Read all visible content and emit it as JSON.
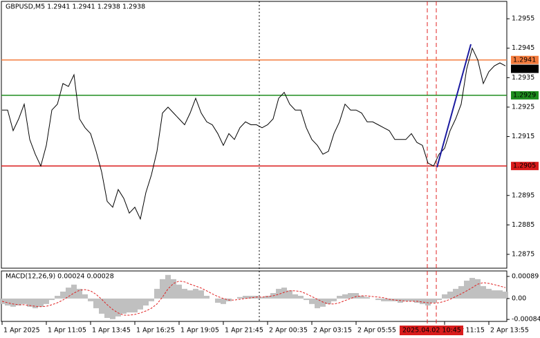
{
  "chart_data": {
    "type": "line",
    "title": "GBPUSD,M5  1.2941 1.2941 1.2938 1.2938",
    "color": "#000000",
    "categories": [
      "1 Apr 2025",
      null,
      null,
      null,
      null,
      null,
      null,
      null,
      "1 Apr 11:05",
      null,
      null,
      null,
      null,
      null,
      null,
      null,
      "1 Apr 13:45",
      null,
      null,
      null,
      null,
      null,
      null,
      null,
      "1 Apr 16:25",
      null,
      null,
      null,
      null,
      null,
      null,
      null,
      "1 Apr 19:05",
      null,
      null,
      null,
      null,
      null,
      null,
      null,
      "1 Apr 21:45",
      null,
      null,
      null,
      null,
      null,
      null,
      null,
      "2 Apr 00:35",
      null,
      null,
      null,
      null,
      null,
      null,
      null,
      "2 Apr 03:15",
      null,
      null,
      null,
      null,
      null,
      null,
      null,
      "2 Apr 05:55",
      null,
      null,
      null,
      null,
      null,
      null,
      null,
      null,
      null,
      null,
      null,
      null,
      null,
      null,
      null,
      "2 Apr 11:15",
      null,
      null,
      null,
      null,
      null,
      null,
      null,
      "2 Apr 13:55",
      null,
      null,
      null
    ],
    "values": [
      1.2924,
      1.2924,
      1.2917,
      1.2921,
      1.2926,
      1.2914,
      1.2909,
      1.2905,
      1.2912,
      1.2924,
      1.2926,
      1.2933,
      1.2932,
      1.2936,
      1.2921,
      1.2918,
      1.2916,
      1.291,
      1.2903,
      1.2893,
      1.2891,
      1.2897,
      1.2894,
      1.2889,
      1.2891,
      1.2887,
      1.2896,
      1.2902,
      1.291,
      1.2923,
      1.2925,
      1.2923,
      1.2921,
      1.2919,
      1.2923,
      1.2928,
      1.2923,
      1.292,
      1.2919,
      1.2916,
      1.2912,
      1.2916,
      1.2914,
      1.2918,
      1.292,
      1.2919,
      1.2919,
      1.2918,
      1.2919,
      1.2921,
      1.2928,
      1.293,
      1.2926,
      1.2924,
      1.2924,
      1.2918,
      1.2914,
      1.2912,
      1.2909,
      1.291,
      1.2916,
      1.292,
      1.2926,
      1.2924,
      1.2924,
      1.2923,
      1.292,
      1.292,
      1.2919,
      1.2918,
      1.2917,
      1.2914,
      1.2914,
      1.2914,
      1.2916,
      1.2913,
      1.2912,
      1.2906,
      1.2905,
      1.2909,
      1.2911,
      1.2917,
      1.2921,
      1.2926,
      1.2938,
      1.2945,
      1.2941,
      1.2933,
      1.2937,
      1.2939,
      1.294,
      1.2939
    ],
    "ylim": [
      1.28703,
      1.29609
    ],
    "yticks": [
      1.2955,
      1.2945,
      1.2935,
      1.2925,
      1.2915,
      1.2895,
      1.2885,
      1.2875
    ],
    "levels": [
      {
        "value": 1.2941,
        "color": "#f37b3d",
        "line": true
      },
      {
        "value": 1.2938,
        "color": "#000000",
        "line": false
      },
      {
        "value": 1.2929,
        "color": "#1e8c1e",
        "line": true
      },
      {
        "value": 1.2905,
        "color": "#d91c1c",
        "line": true
      }
    ],
    "crosshair_time": "2025.04.02 10:45",
    "macd": {
      "type": "bar",
      "title": "MACD(12,26,9) 0.00024 0.00028",
      "ylim": [
        -0.00092,
        0.00111
      ],
      "yticks": [
        0.00089,
        {
          "value": 0,
          "label": "0.00"
        },
        -0.00084
      ],
      "series": [
        {
          "name": "MACD",
          "color": "#c0c0c0",
          "values": [
            -0.00022,
            -0.00028,
            -0.00033,
            -0.00028,
            -0.00022,
            -0.00033,
            -0.00039,
            -0.00033,
            -0.00022,
            -6e-05,
            0.00011,
            0.00028,
            0.00044,
            0.00056,
            0.00039,
            0.00017,
            -0.00011,
            -0.00039,
            -0.00061,
            -0.00078,
            -0.00083,
            -0.00072,
            -0.00061,
            -0.00056,
            -0.00056,
            -0.00044,
            -0.00028,
            -0.00011,
            0.00039,
            0.00078,
            0.00095,
            0.00078,
            0.00056,
            0.00039,
            0.00033,
            0.00039,
            0.00033,
            0.00011,
            0,
            -0.00017,
            -0.00022,
            -0.00011,
            0,
            6e-05,
            0.00011,
            0.00011,
            0.00011,
            6e-05,
            0.00011,
            0.00022,
            0.00039,
            0.00044,
            0.00033,
            0.00017,
            0.00011,
            -6e-05,
            -0.00022,
            -0.00039,
            -0.00033,
            -0.00022,
            -0.00011,
            0.00011,
            0.00017,
            0.00022,
            0.00022,
            0.00011,
            6e-05,
            0,
            -6e-05,
            -0.00011,
            -0.00011,
            -0.00011,
            -0.00017,
            -0.00011,
            -0.00011,
            -0.00017,
            -0.00022,
            -0.00028,
            -0.00017,
            -6e-05,
            0.00017,
            0.00028,
            0.00039,
            0.0005,
            0.00072,
            0.00083,
            0.00078,
            0.0005,
            0.00039,
            0.00033,
            0.00033,
            0.00028
          ]
        },
        {
          "name": "Signal",
          "color": "#e02020",
          "values": [
            -0.00011,
            -0.00017,
            -0.00022,
            -0.00025,
            -0.00025,
            -0.00028,
            -0.00031,
            -0.00033,
            -0.00031,
            -0.00025,
            -0.00017,
            -6e-05,
            8e-05,
            0.00022,
            0.00033,
            0.00036,
            0.00031,
            0.00017,
            -3e-05,
            -0.00025,
            -0.00044,
            -0.00058,
            -0.00067,
            -0.00067,
            -0.00064,
            -0.00058,
            -0.0005,
            -0.00039,
            -0.00022,
            6e-05,
            0.00039,
            0.00061,
            0.0007,
            0.00067,
            0.00058,
            0.0005,
            0.00042,
            0.00031,
            0.00019,
            8e-05,
            0,
            -6e-05,
            -6e-05,
            -3e-05,
            0,
            3e-05,
            6e-05,
            6e-05,
            8e-05,
            0.00011,
            0.00017,
            0.00025,
            0.00031,
            0.00031,
            0.00028,
            0.00019,
            8e-05,
            -3e-05,
            -0.00014,
            -0.00022,
            -0.00022,
            -0.00017,
            -8e-05,
            0,
            8e-05,
            0.00011,
            0.00011,
            8e-05,
            6e-05,
            3e-05,
            -3e-05,
            -6e-05,
            -8e-05,
            -0.00011,
            -0.00011,
            -0.00011,
            -0.00014,
            -0.00017,
            -0.00019,
            -0.00017,
            -0.00011,
            -3e-05,
            8e-05,
            0.00019,
            0.00031,
            0.00044,
            0.00058,
            0.00064,
            0.00061,
            0.00056,
            0.0005,
            0.00044
          ]
        }
      ]
    }
  }
}
